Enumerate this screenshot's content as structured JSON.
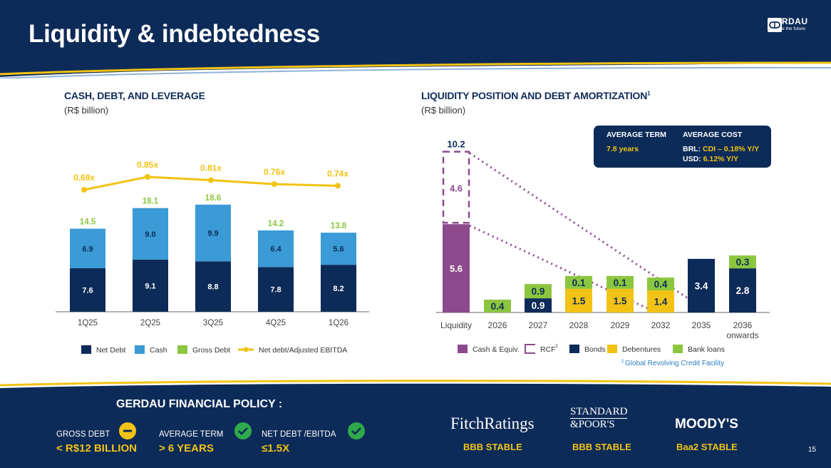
{
  "page": {
    "title": "Liquidity & indebtedness",
    "page_number": "15",
    "logo": {
      "name": "GERDAU",
      "tagline": "Shape the future"
    },
    "colors": {
      "navy": "#0d2b58",
      "light_blue": "#3a9bd6",
      "green": "#8cc63f",
      "yellow": "#f2c314",
      "purple": "#8c4a8c",
      "bond_navy": "#0d2b58"
    }
  },
  "left_chart_section": {
    "title": "CASH, DEBT, AND LEVERAGE",
    "subtitle": "(R$ billion)"
  },
  "right_chart_section": {
    "title": "LIQUIDITY POSITION AND DEBT AMORTIZATION",
    "title_sup": "1",
    "subtitle": "(R$ billion)",
    "footnote_sup": "1",
    "footnote": "Global Revolving Credit Facility"
  },
  "info_box": {
    "avg_term_label": "AVERAGE TERM",
    "avg_term_value": "7.8 years",
    "avg_cost_label": "AVERAGE COST",
    "brl_label": "BRL:",
    "brl_value": "CDI – 0.18% Y/Y",
    "usd_label": "USD:",
    "usd_value": "6.12% Y/Y"
  },
  "policy": {
    "title": "GERDAU FINANCIAL POLICY :",
    "items": [
      {
        "label": "GROSS DEBT",
        "value": "< R$12 BILLION",
        "status_icon": "minus-icon"
      },
      {
        "label": "AVERAGE TERM",
        "value": "> 6 YEARS",
        "status_icon": "check-icon"
      },
      {
        "label": "NET DEBT /EBITDA",
        "value": "≤1.5X",
        "status_icon": "check-icon"
      }
    ]
  },
  "ratings": [
    {
      "agency": "FitchRatings",
      "rating": "BBB  STABLE"
    },
    {
      "agency_line1": "STANDARD",
      "agency_line2": "&POOR'S",
      "rating": "BBB STABLE"
    },
    {
      "agency": "MOODY'S",
      "rating": "Baa2 STABLE"
    }
  ],
  "chart_data": [
    {
      "type": "bar",
      "stacked": true,
      "title": "CASH, DEBT, AND LEVERAGE",
      "categories": [
        "1Q25",
        "2Q25",
        "3Q25",
        "4Q25",
        "1Q26"
      ],
      "series": [
        {
          "name": "Net Debt",
          "values": [
            7.6,
            9.1,
            8.8,
            7.8,
            8.2
          ],
          "color": "#0d2b58"
        },
        {
          "name": "Cash",
          "values": [
            6.9,
            9.0,
            9.9,
            6.4,
            5.6
          ],
          "color": "#3a9bd6"
        }
      ],
      "gross_debt": {
        "name": "Gross Debt",
        "values": [
          14.5,
          18.1,
          18.6,
          14.2,
          13.8
        ],
        "color": "#8cc63f"
      },
      "line": {
        "name": "Net debt/Adjusted EBITDA",
        "values": [
          0.69,
          0.85,
          0.81,
          0.76,
          0.74
        ],
        "labels": [
          "0.69x",
          "0.85x",
          "0.81x",
          "0.76x",
          "0.74x"
        ],
        "color": "#f2c314"
      },
      "legend": [
        "Net Debt",
        "Cash",
        "Gross Debt",
        "Net debt/Adjusted EBITDA"
      ],
      "ylim": [
        0,
        20
      ]
    },
    {
      "type": "bar",
      "stacked": true,
      "title": "LIQUIDITY POSITION AND DEBT AMORTIZATION",
      "categories": [
        "Liquidity",
        "2026",
        "2027",
        "2028",
        "2029",
        "2032",
        "2035",
        "2036 onwards"
      ],
      "liquidity": {
        "total_label": "10.2",
        "cash": 5.6,
        "rcf": 4.6
      },
      "series": [
        {
          "name": "Bonds",
          "values": [
            null,
            0,
            0.9,
            0,
            0,
            0,
            3.4,
            2.8
          ],
          "color": "#0d2b58"
        },
        {
          "name": "Debentures",
          "values": [
            null,
            0,
            0,
            1.5,
            1.5,
            1.4,
            0,
            0
          ],
          "color": "#f2c314"
        },
        {
          "name": "Bank loans",
          "values": [
            null,
            0.4,
            0.9,
            0.1,
            0.1,
            0.4,
            0,
            0.3
          ],
          "color": "#8cc63f"
        }
      ],
      "legend": [
        "Cash & Equiv.",
        "RCF",
        "Bonds",
        "Debentures",
        "Bank loans"
      ],
      "legend_rcf_sup": "1",
      "ylim": [
        0,
        11
      ]
    }
  ]
}
